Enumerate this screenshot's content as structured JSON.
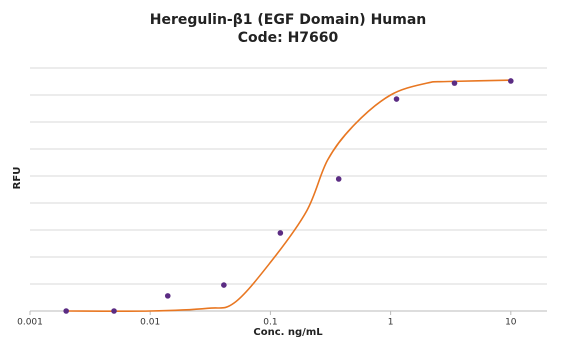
{
  "chart_data": {
    "type": "scatter",
    "title": "Heregulin-β1 (EGF Domain) Human",
    "subtitle": "Code: H7660",
    "x_label": "Conc. ng/mL",
    "y_label": "RFU",
    "x_scale": "log",
    "xlim": [
      0.001,
      20
    ],
    "xticks": [
      0.001,
      0.01,
      0.1,
      1,
      10
    ],
    "ylim": [
      0,
      9
    ],
    "yticks": [
      {
        "value": 1,
        "label": null
      },
      {
        "value": 2,
        "label": null
      },
      {
        "value": 3,
        "label": null
      },
      {
        "value": 4,
        "label": null
      },
      {
        "value": 5,
        "label": null
      },
      {
        "value": 6,
        "label": null
      },
      {
        "value": 7,
        "label": null
      },
      {
        "value": 8,
        "label": null
      },
      {
        "value": 9,
        "label": null
      }
    ],
    "grid": true,
    "points": {
      "color": "#5b2c83",
      "x": [
        0.002,
        0.005,
        0.014,
        0.041,
        0.121,
        0.37,
        1.12,
        3.4,
        10
      ],
      "y": [
        0,
        0,
        0.56,
        0.96,
        2.89,
        4.89,
        7.85,
        8.44,
        8.52
      ]
    },
    "fit": {
      "color": "#e87722",
      "x": [
        0.002,
        0.01,
        0.03,
        0.05,
        0.1,
        0.2,
        0.3,
        0.5,
        1,
        2,
        3,
        10
      ],
      "y": [
        0,
        0,
        0.1,
        0.3,
        1.8,
        3.7,
        5.6,
        6.9,
        8.0,
        8.44,
        8.5,
        8.55
      ]
    }
  }
}
